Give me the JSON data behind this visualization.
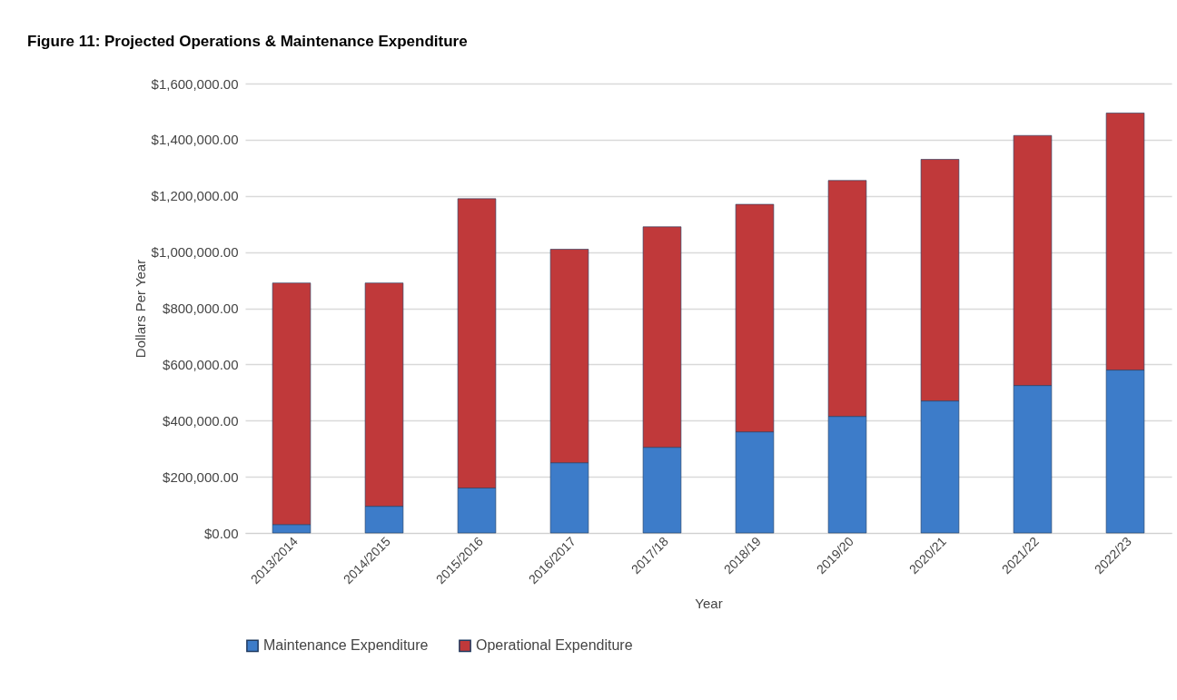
{
  "chart_data": {
    "type": "bar",
    "title": "Figure 11: Projected Operations & Maintenance Expenditure",
    "xlabel": "Year",
    "ylabel": "Dollars Per Year",
    "categories": [
      "2013/2014",
      "2014/2015",
      "2015/2016",
      "2016/2017",
      "2017/18",
      "2018/19",
      "2019/20",
      "2020/21",
      "2021/22",
      "2022/23"
    ],
    "series": [
      {
        "name": "Maintenance Expenditure",
        "color": "#3d7cc9",
        "values": [
          30000,
          95000,
          160000,
          250000,
          305000,
          360000,
          415000,
          470000,
          525000,
          580000
        ]
      },
      {
        "name": "Operational Expenditure",
        "color": "#c0393a",
        "values": [
          860000,
          795000,
          1030000,
          760000,
          785000,
          810000,
          840000,
          860000,
          890000,
          915000
        ]
      }
    ],
    "stacked": true,
    "ylim": [
      0,
      1600000
    ],
    "yticks": [
      {
        "value": 0,
        "label": "$0.00"
      },
      {
        "value": 200000,
        "label": "$200,000.00"
      },
      {
        "value": 400000,
        "label": "$400,000.00"
      },
      {
        "value": 600000,
        "label": "$600,000.00"
      },
      {
        "value": 800000,
        "label": "$800,000.00"
      },
      {
        "value": 1000000,
        "label": "$1,000,000.00"
      },
      {
        "value": 1200000,
        "label": "$1,200,000.00"
      },
      {
        "value": 1400000,
        "label": "$1,400,000.00"
      },
      {
        "value": 1600000,
        "label": "$1,600,000.00"
      }
    ],
    "grid": "y",
    "legend": "bottom"
  }
}
